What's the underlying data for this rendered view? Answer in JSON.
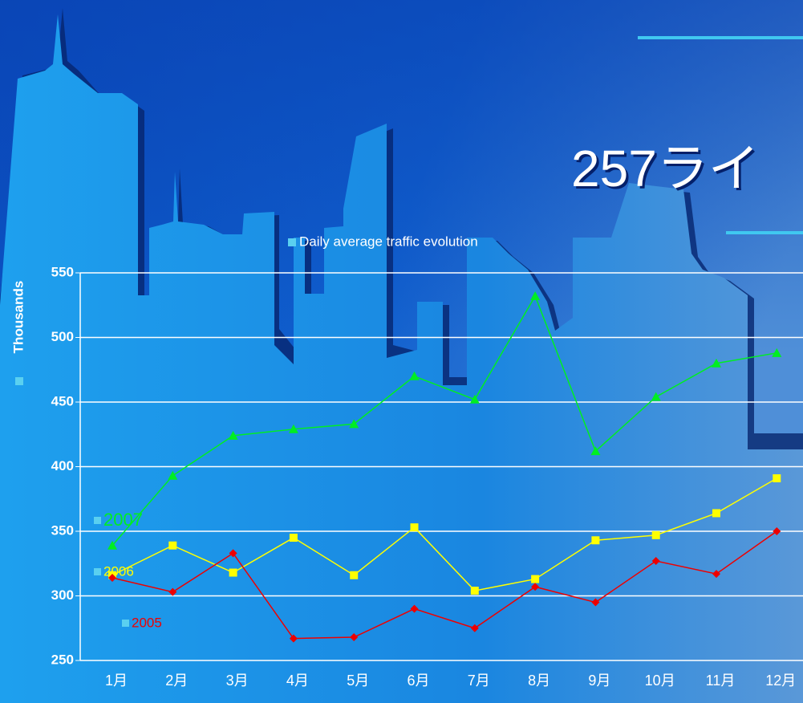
{
  "slide_title": "257ライ",
  "chart_data": {
    "type": "line",
    "title": "Daily average traffic evolution",
    "y_label": "Thousands",
    "categories": [
      "1月",
      "2月",
      "3月",
      "4月",
      "5月",
      "6月",
      "7月",
      "8月",
      "9月",
      "10月",
      "11月",
      "12月"
    ],
    "series": [
      {
        "name": "2007",
        "color": "#00ee22",
        "marker": "triangle",
        "values": [
          339,
          393,
          424,
          429,
          433,
          470,
          452,
          532,
          412,
          454,
          480,
          488
        ]
      },
      {
        "name": "2006",
        "color": "#ffff00",
        "marker": "square",
        "values": [
          316,
          339,
          318,
          345,
          316,
          353,
          304,
          313,
          343,
          347,
          364,
          391
        ]
      },
      {
        "name": "2005",
        "color": "#ee0000",
        "marker": "diamond",
        "values": [
          314,
          303,
          333,
          267,
          268,
          290,
          275,
          307,
          295,
          327,
          317,
          350
        ]
      }
    ],
    "ylim": [
      250,
      550
    ],
    "yticks": [
      250,
      300,
      350,
      400,
      450,
      500,
      550
    ],
    "grid": true
  }
}
